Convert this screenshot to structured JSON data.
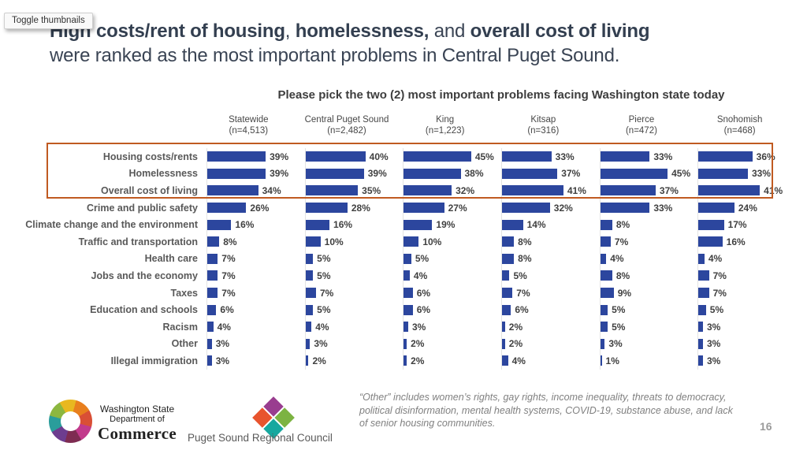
{
  "viewer": {
    "tooltip_label": "Toggle thumbnails"
  },
  "title": {
    "bold1": "High costs/rent of housing",
    "sep1": ", ",
    "bold2": "homelessness,",
    "sep2": " and ",
    "bold3": "overall cost of living",
    "line2": "were ranked as the most important problems in Central Puget Sound."
  },
  "chart_data": {
    "type": "bar",
    "orientation": "horizontal",
    "title": "Please pick the two (2) most important problems facing Washington state today",
    "unit": "%",
    "bar_color": "#2C469E",
    "highlight_color": "#C05A21",
    "highlighted_categories": [
      "Housing costs/rents",
      "Homelessness",
      "Overall cost of living"
    ],
    "categories": [
      "Housing costs/rents",
      "Homelessness",
      "Overall cost of living",
      "Crime and public safety",
      "Climate change and the environment",
      "Traffic and transportation",
      "Health care",
      "Jobs and the economy",
      "Taxes",
      "Education and schools",
      "Racism",
      "Other",
      "Illegal immigration"
    ],
    "series": [
      {
        "name": "Statewide",
        "n": "(n=4,513)",
        "values": [
          39,
          39,
          34,
          26,
          16,
          8,
          7,
          7,
          7,
          6,
          4,
          3,
          3
        ]
      },
      {
        "name": "Central Puget Sound",
        "n": "(n=2,482)",
        "values": [
          40,
          39,
          35,
          28,
          16,
          10,
          5,
          5,
          7,
          5,
          4,
          3,
          2
        ]
      },
      {
        "name": "King",
        "n": "(n=1,223)",
        "values": [
          45,
          38,
          32,
          27,
          19,
          10,
          5,
          4,
          6,
          6,
          3,
          2,
          2
        ]
      },
      {
        "name": "Kitsap",
        "n": "(n=316)",
        "values": [
          33,
          37,
          41,
          32,
          14,
          8,
          8,
          5,
          7,
          6,
          2,
          2,
          4
        ]
      },
      {
        "name": "Pierce",
        "n": "(n=472)",
        "values": [
          33,
          45,
          37,
          33,
          8,
          7,
          4,
          8,
          9,
          5,
          5,
          3,
          1
        ]
      },
      {
        "name": "Snohomish",
        "n": "(n=468)",
        "values": [
          36,
          33,
          41,
          24,
          17,
          16,
          4,
          7,
          7,
          5,
          3,
          3,
          3
        ]
      }
    ]
  },
  "footnote": "“Other” includes women’s rights, gay rights, income inequality, threats to democracy, political disinformation, mental health systems, COVID-19, substance abuse, and lack of senior housing communities.",
  "page_number": "16",
  "logos": {
    "commerce": {
      "line1": "Washington State",
      "line2": "Department of",
      "line3": "Commerce"
    },
    "psrc": {
      "label": "Puget Sound Regional Council"
    }
  }
}
